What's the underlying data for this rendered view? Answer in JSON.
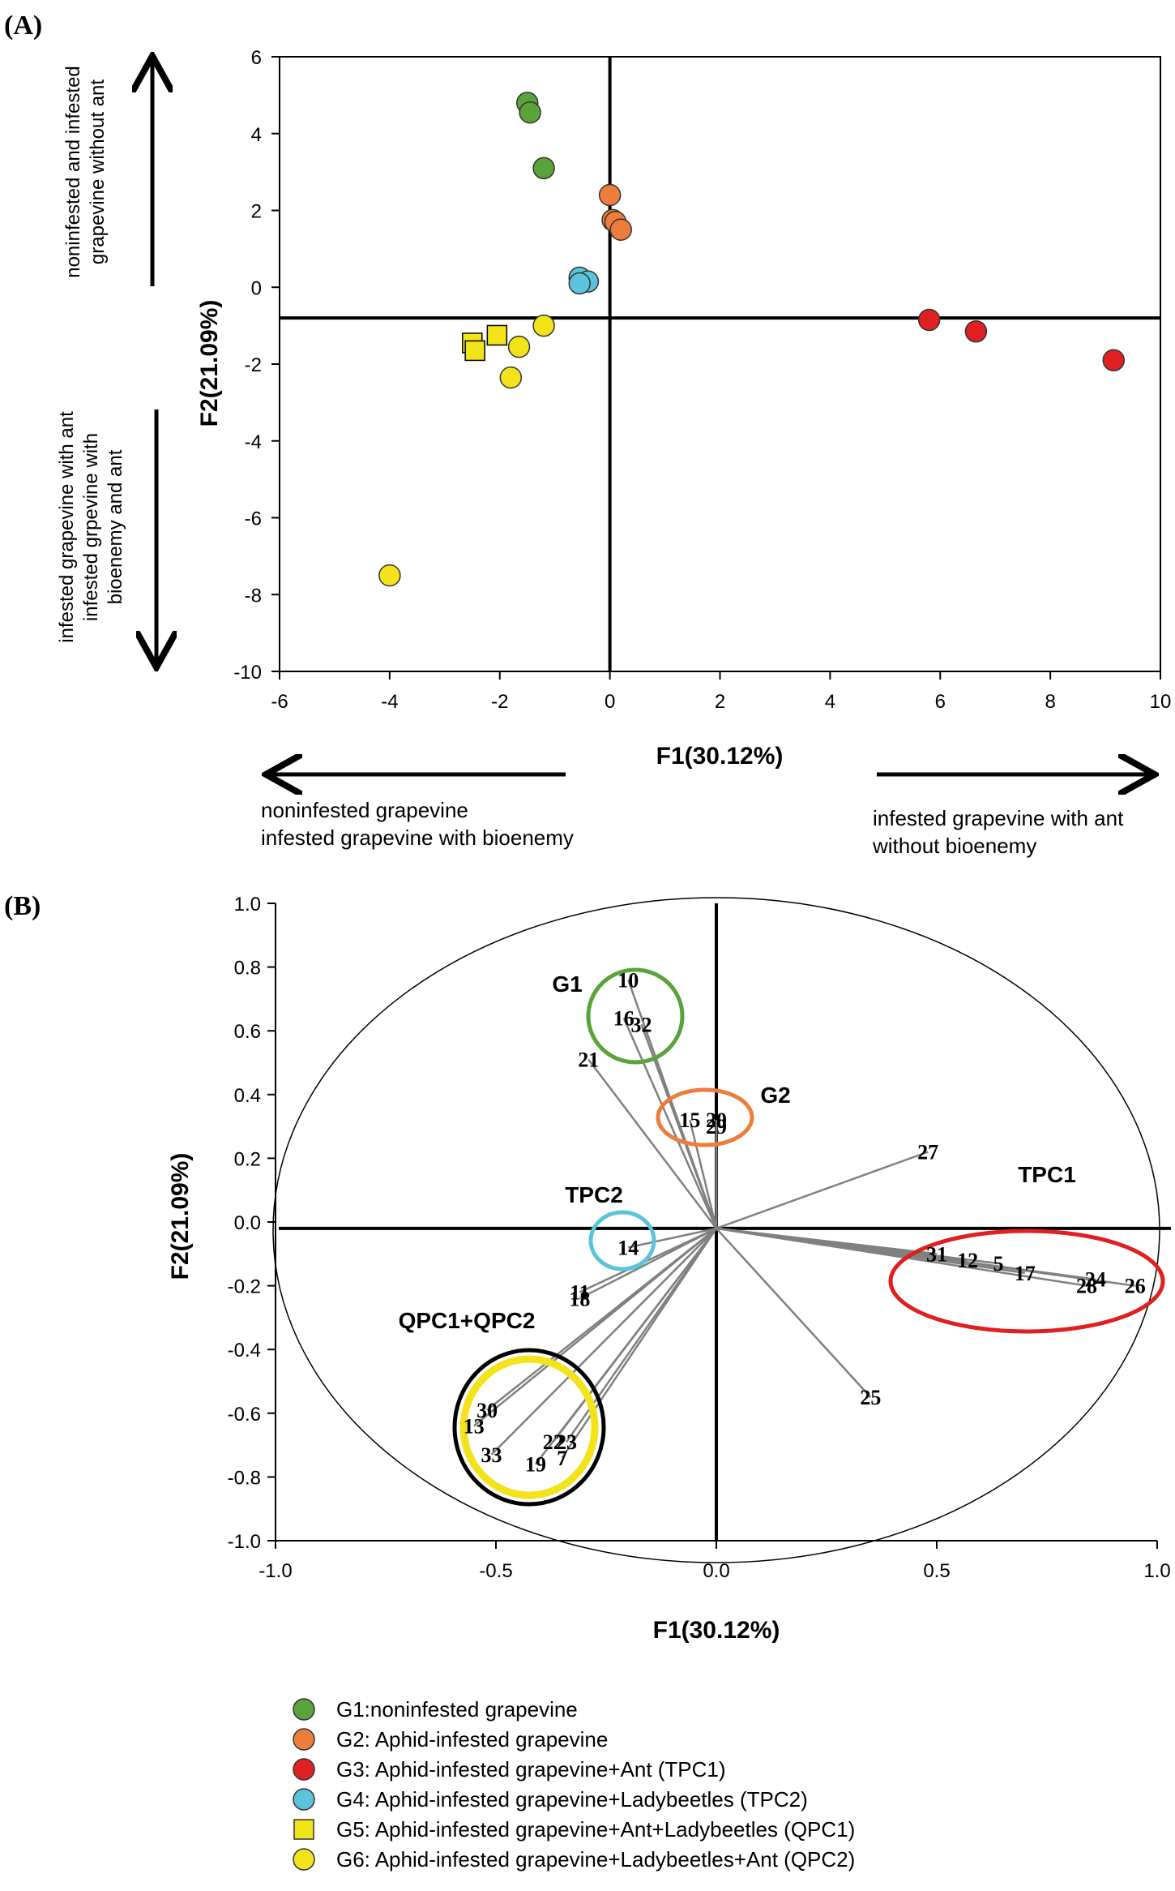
{
  "panel_a": {
    "label": "(A)",
    "chart_data": {
      "type": "scatter",
      "xlabel": "F1(30.12%)",
      "ylabel": "F2(21.09%)",
      "xlim": [
        -6,
        10
      ],
      "ylim": [
        -10,
        6
      ],
      "xticks": [
        -6,
        -4,
        -2,
        0,
        2,
        4,
        6,
        8,
        10
      ],
      "yticks": [
        -10,
        -8,
        -6,
        -4,
        -2,
        0,
        2,
        4,
        6
      ],
      "xtick_labels": [
        "-6",
        "-4",
        "-2",
        "0",
        "2",
        "4",
        "6",
        "8",
        "10"
      ],
      "ytick_labels": [
        "-10",
        "-8",
        "-6",
        "-4",
        "-2",
        "0",
        "2",
        "4",
        "6"
      ],
      "reference_lines": {
        "vertical_x": 0,
        "horizontal_y": -0.8
      },
      "series": [
        {
          "group": "G1",
          "color": "#5aa33a",
          "marker": "circle",
          "points": [
            [
              -1.5,
              4.8
            ],
            [
              -1.45,
              4.55
            ],
            [
              -1.2,
              3.1
            ]
          ]
        },
        {
          "group": "G2",
          "color": "#ed7d3b",
          "marker": "circle",
          "points": [
            [
              0,
              2.4
            ],
            [
              0.05,
              1.75
            ],
            [
              0.1,
              1.7
            ],
            [
              0.2,
              1.5
            ]
          ]
        },
        {
          "group": "G3",
          "color": "#e02020",
          "marker": "circle",
          "points": [
            [
              5.8,
              -0.85
            ],
            [
              6.65,
              -1.15
            ],
            [
              9.15,
              -1.9
            ]
          ]
        },
        {
          "group": "G4",
          "color": "#5bc4dc",
          "marker": "circle",
          "points": [
            [
              -0.55,
              0.25
            ],
            [
              -0.4,
              0.15
            ],
            [
              -0.55,
              0.1
            ]
          ]
        },
        {
          "group": "G5",
          "color": "#f2e31b",
          "marker": "square",
          "points": [
            [
              -2.5,
              -1.45
            ],
            [
              -2.45,
              -1.65
            ],
            [
              -2.05,
              -1.25
            ]
          ]
        },
        {
          "group": "G6",
          "color": "#f2e31b",
          "marker": "circle",
          "points": [
            [
              -1.2,
              -1.0
            ],
            [
              -1.65,
              -1.55
            ],
            [
              -1.8,
              -2.35
            ],
            [
              -4.0,
              -7.5
            ]
          ]
        }
      ]
    },
    "annotations": {
      "top_left_1": "noninfested and infested",
      "top_left_2": "grapevine without ant",
      "bottom_left_1": "infested grapevine with ant",
      "bottom_left_2": "infested grpevine with",
      "bottom_left_3": "bioenemy and ant",
      "bottom_1": "noninfested grapevine",
      "bottom_2": "infested grapevine with bioenemy",
      "bottom_right_1": "infested grapevine with ant",
      "bottom_right_2": "without bioenemy"
    }
  },
  "panel_b": {
    "label": "(B)",
    "chart_data": {
      "type": "scatter",
      "xlabel": "F1(30.12%)",
      "ylabel": "F2(21.09%)",
      "xlim": [
        -1.0,
        1.0
      ],
      "ylim": [
        -1.0,
        1.0
      ],
      "xticks": [
        -1.0,
        -0.5,
        0.0,
        0.5,
        1.0
      ],
      "yticks": [
        -1.0,
        -0.8,
        -0.6,
        -0.4,
        -0.2,
        0.0,
        0.2,
        0.4,
        0.6,
        0.8,
        1.0
      ],
      "xtick_labels": [
        "-1.0",
        "-0.5",
        "0.0",
        "0.5",
        "1.0"
      ],
      "ytick_labels": [
        "-1.0",
        "-0.8",
        "-0.6",
        "-0.4",
        "-0.2",
        "0.0",
        "0.2",
        "0.4",
        "0.6",
        "0.8",
        "1.0"
      ],
      "reference_lines": {
        "vertical_x": 0,
        "horizontal_y": -0.02
      },
      "variables": [
        {
          "label": "10",
          "x": -0.2,
          "y": 0.76
        },
        {
          "label": "16",
          "x": -0.21,
          "y": 0.64
        },
        {
          "label": "32",
          "x": -0.17,
          "y": 0.62
        },
        {
          "label": "21",
          "x": -0.29,
          "y": 0.51
        },
        {
          "label": "15",
          "x": -0.06,
          "y": 0.32
        },
        {
          "label": "20",
          "x": 0.0,
          "y": 0.32
        },
        {
          "label": "29",
          "x": 0.0,
          "y": 0.3
        },
        {
          "label": "27",
          "x": 0.48,
          "y": 0.22
        },
        {
          "label": "14",
          "x": -0.2,
          "y": -0.08
        },
        {
          "label": "11",
          "x": -0.31,
          "y": -0.22
        },
        {
          "label": "18",
          "x": -0.31,
          "y": -0.24
        },
        {
          "label": "31",
          "x": 0.5,
          "y": -0.1
        },
        {
          "label": "12",
          "x": 0.57,
          "y": -0.12
        },
        {
          "label": "5",
          "x": 0.64,
          "y": -0.13
        },
        {
          "label": "17",
          "x": 0.7,
          "y": -0.16
        },
        {
          "label": "24",
          "x": 0.86,
          "y": -0.18
        },
        {
          "label": "28",
          "x": 0.84,
          "y": -0.2
        },
        {
          "label": "26",
          "x": 0.95,
          "y": -0.2
        },
        {
          "label": "25",
          "x": 0.35,
          "y": -0.55
        },
        {
          "label": "30",
          "x": -0.52,
          "y": -0.59
        },
        {
          "label": "13",
          "x": -0.55,
          "y": -0.64
        },
        {
          "label": "33",
          "x": -0.51,
          "y": -0.73
        },
        {
          "label": "19",
          "x": -0.41,
          "y": -0.76
        },
        {
          "label": "22",
          "x": -0.37,
          "y": -0.69
        },
        {
          "label": "23",
          "x": -0.34,
          "y": -0.69
        },
        {
          "label": "7",
          "x": -0.35,
          "y": -0.74
        }
      ],
      "groups": [
        {
          "label": "G1",
          "color": "#5aa33a"
        },
        {
          "label": "G2",
          "color": "#ed7d3b"
        },
        {
          "label": "TPC1",
          "color": "#e02020"
        },
        {
          "label": "TPC2",
          "color": "#5bc4dc"
        },
        {
          "label": "QPC1+QPC2",
          "color": "#f2e31b"
        }
      ]
    }
  },
  "legend": [
    {
      "marker": "circle",
      "color": "#5aa33a",
      "text": "G1:noninfested grapevine"
    },
    {
      "marker": "circle",
      "color": "#ed7d3b",
      "text": "G2: Aphid-infested grapevine"
    },
    {
      "marker": "circle",
      "color": "#e02020",
      "text": "G3: Aphid-infested grapevine+Ant (TPC1)"
    },
    {
      "marker": "circle",
      "color": "#5bc4dc",
      "text": "G4: Aphid-infested grapevine+Ladybeetles (TPC2)"
    },
    {
      "marker": "square",
      "color": "#f2e31b",
      "text": "G5: Aphid-infested grapevine+Ant+Ladybeetles (QPC1)"
    },
    {
      "marker": "circle",
      "color": "#f2e31b",
      "text": "G6: Aphid-infested grapevine+Ladybeetles+Ant (QPC2)"
    }
  ]
}
